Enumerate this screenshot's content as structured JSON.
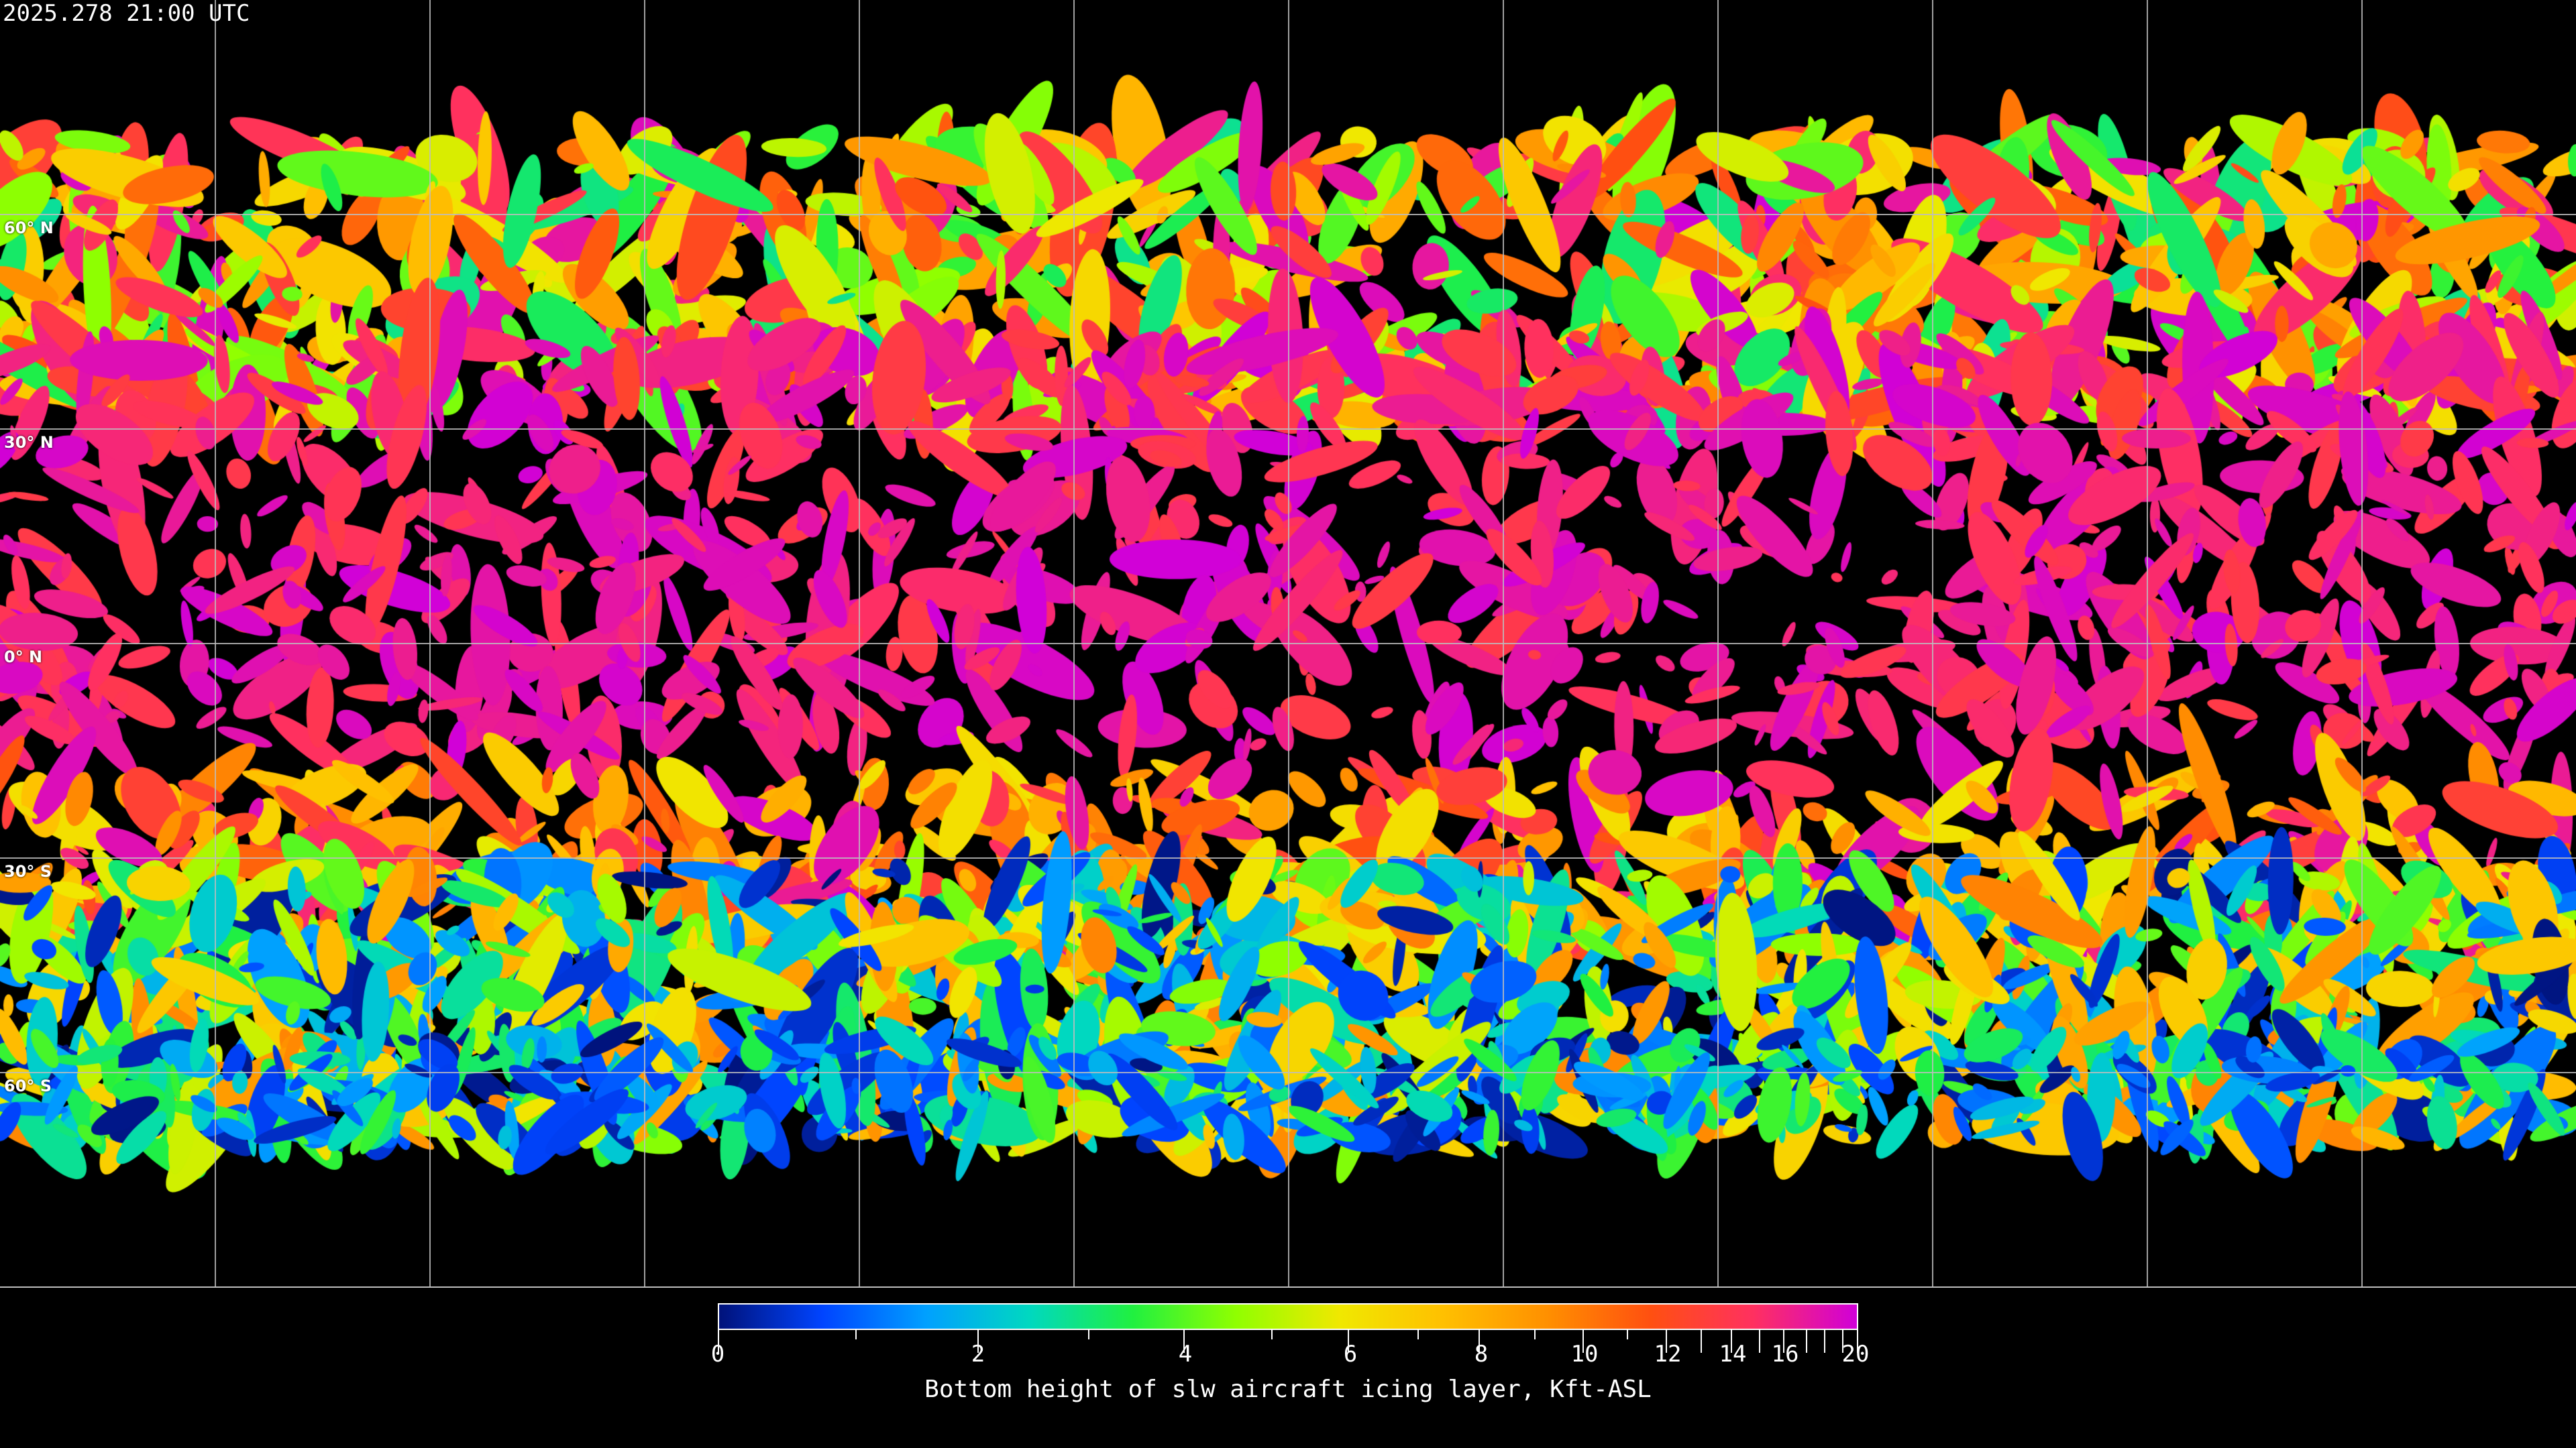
{
  "timestamp": "2025.278 21:00 UTC",
  "latitude_labels": [
    "60° N",
    "30° N",
    "0° N",
    "30° S",
    "60° S"
  ],
  "colorbar": {
    "title": "Bottom height of slw aircraft icing layer, Kft-ASL",
    "min": 0,
    "max": 20,
    "tick_labels": [
      "0",
      "2",
      "4",
      "6",
      "8",
      "10",
      "12",
      "14",
      "16",
      "20"
    ],
    "colors": [
      "#00127a",
      "#0044ff",
      "#00a0ff",
      "#00d8c0",
      "#20f040",
      "#90ff00",
      "#f0e800",
      "#ffc000",
      "#ff9000",
      "#ff5010",
      "#ff3060",
      "#d000d8"
    ]
  }
}
